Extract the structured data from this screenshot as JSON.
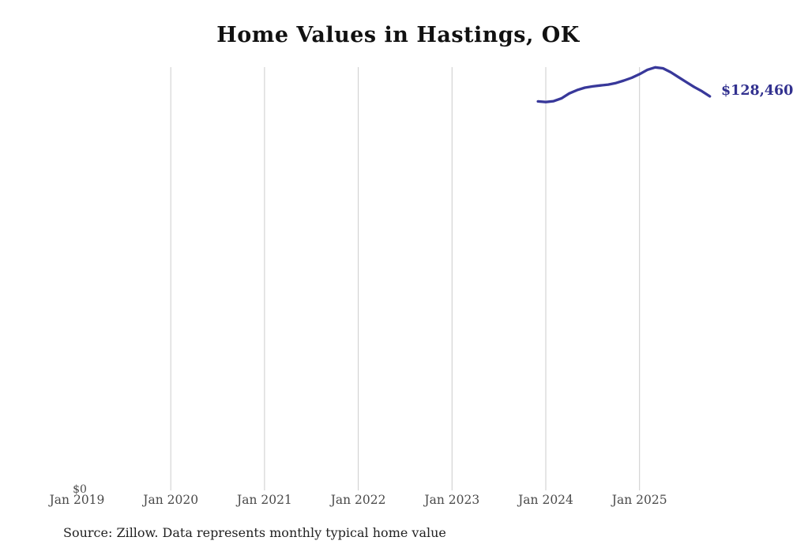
{
  "page": {
    "title": "Home Values in Hastings, OK",
    "source_note": "Source: Zillow. Data represents monthly typical home value"
  },
  "chart_data": {
    "type": "line",
    "title": "Home Values in Hastings, OK",
    "x": [
      "Dec 2023",
      "Jan 2024",
      "Feb 2024",
      "Mar 2024",
      "Apr 2024",
      "May 2024",
      "Jun 2024",
      "Jul 2024",
      "Aug 2024",
      "Sep 2024",
      "Oct 2024",
      "Nov 2024",
      "Dec 2024",
      "Jan 2025",
      "Feb 2025",
      "Mar 2025",
      "Apr 2025",
      "May 2025",
      "Jun 2025",
      "Jul 2025",
      "Aug 2025",
      "Sep 2025",
      "Oct 2025"
    ],
    "series": [
      {
        "name": "Monthly typical home value",
        "values": [
          126800,
          126600,
          126900,
          127800,
          129400,
          130500,
          131300,
          131700,
          132000,
          132300,
          132800,
          133600,
          134500,
          135700,
          137100,
          137900,
          137600,
          136300,
          134700,
          133100,
          131500,
          130100,
          128460
        ]
      }
    ],
    "end_label": "$128,460",
    "y_zero_label": "$0",
    "x_tick_labels": [
      "Jan 2019",
      "Jan 2020",
      "Jan 2021",
      "Jan 2022",
      "Jan 2023",
      "Jan 2024",
      "Jan 2025"
    ],
    "ylim": [
      0,
      138600
    ],
    "grid": "vertical-only",
    "legend_position": "none",
    "colors": {
      "line": "#38389a",
      "end_label": "#32318f",
      "gridline": "#cccccc",
      "tick_text": "#4a4a4a",
      "title_text": "#111111",
      "source_text": "#222222"
    }
  }
}
